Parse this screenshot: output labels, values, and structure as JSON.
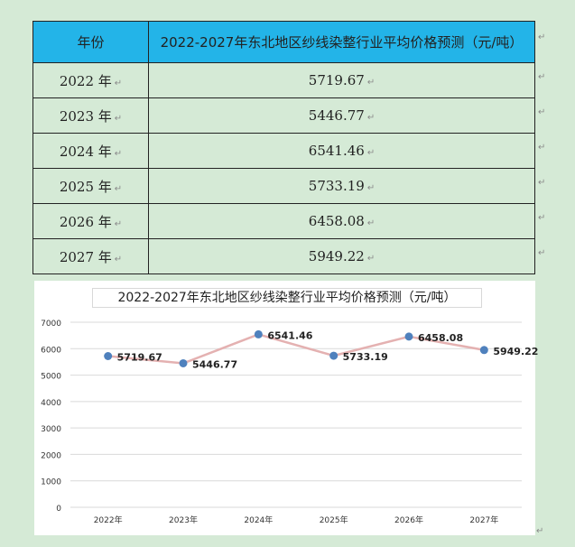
{
  "table": {
    "header_year": "年份",
    "header_value": "2022-2027年东北地区纱线染整行业平均价格预测（元/吨）",
    "rows": [
      {
        "year": "2022 年",
        "value": "5719.67"
      },
      {
        "year": "2023 年",
        "value": "5446.77"
      },
      {
        "year": "2024 年",
        "value": "6541.46"
      },
      {
        "year": "2025 年",
        "value": "5733.19"
      },
      {
        "year": "2026 年",
        "value": "6458.08"
      },
      {
        "year": "2027 年",
        "value": "5949.22"
      }
    ]
  },
  "chart_data": {
    "type": "line",
    "title": "2022-2027年东北地区纱线染整行业平均价格预测（元/吨）",
    "categories": [
      "2022年",
      "2023年",
      "2024年",
      "2025年",
      "2026年",
      "2027年"
    ],
    "values": [
      5719.67,
      5446.77,
      6541.46,
      5733.19,
      6458.08,
      5949.22
    ],
    "labels": [
      "5719.67",
      "5446.77",
      "6541.46",
      "5733.19",
      "6458.08",
      "5949.22"
    ],
    "ylim": [
      0,
      7000
    ],
    "yticks": [
      "0",
      "1000",
      "2000",
      "3000",
      "4000",
      "5000",
      "6000",
      "7000"
    ],
    "grid": true,
    "legend": "none",
    "colors": {
      "line": "#e4b1b1",
      "marker": "#4f81bd",
      "grid": "#d9d9d9"
    }
  },
  "paragraph_mark": "↵"
}
